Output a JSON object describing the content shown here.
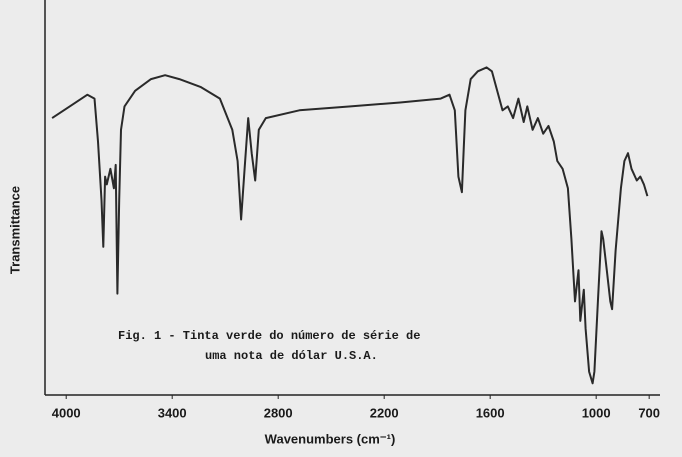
{
  "chart_data": {
    "type": "line",
    "xlabel": "Wavenumbers (cm⁻¹)",
    "ylabel": "Transmittance",
    "annotation": [
      "Fig. 1 - Tinta verde do número de série de",
      "uma nota de dólar U.S.A."
    ],
    "xlim": [
      4120,
      650
    ],
    "xticks": [
      4000,
      3400,
      2800,
      2200,
      1600,
      1000,
      700
    ],
    "ylim": [
      0,
      100
    ],
    "grid": false,
    "x": [
      4080,
      3980,
      3880,
      3840,
      3820,
      3800,
      3790,
      3780,
      3770,
      3750,
      3730,
      3720,
      3710,
      3700,
      3690,
      3670,
      3610,
      3520,
      3440,
      3360,
      3240,
      3130,
      3060,
      3030,
      3010,
      2990,
      2970,
      2950,
      2930,
      2910,
      2870,
      2680,
      2390,
      2110,
      1880,
      1830,
      1800,
      1780,
      1760,
      1750,
      1740,
      1710,
      1670,
      1620,
      1590,
      1560,
      1530,
      1500,
      1470,
      1440,
      1410,
      1390,
      1360,
      1330,
      1300,
      1270,
      1240,
      1220,
      1190,
      1160,
      1140,
      1120,
      1100,
      1090,
      1070,
      1060,
      1040,
      1020,
      1010,
      990,
      970,
      960,
      940,
      920,
      910,
      890,
      860,
      840,
      820,
      800,
      770,
      750,
      730,
      710
    ],
    "series": [
      {
        "color": "#2a2a2a",
        "values": [
          71,
          74,
          77,
          76,
          65,
          50,
          38,
          56,
          54,
          58,
          53,
          59,
          26,
          50,
          68,
          74,
          78,
          81,
          82,
          81,
          79,
          76,
          68,
          60,
          45,
          58,
          71,
          62,
          55,
          68,
          71,
          73,
          74,
          75,
          76,
          77,
          73,
          56,
          52,
          63,
          73,
          81,
          83,
          84,
          83,
          78,
          73,
          74,
          71,
          76,
          70,
          74,
          68,
          71,
          67,
          69,
          65,
          60,
          58,
          53,
          40,
          24,
          32,
          19,
          27,
          17,
          6,
          3,
          6,
          24,
          42,
          40,
          32,
          24,
          22,
          37,
          53,
          60,
          62,
          58,
          55,
          56,
          54,
          51
        ]
      }
    ]
  }
}
